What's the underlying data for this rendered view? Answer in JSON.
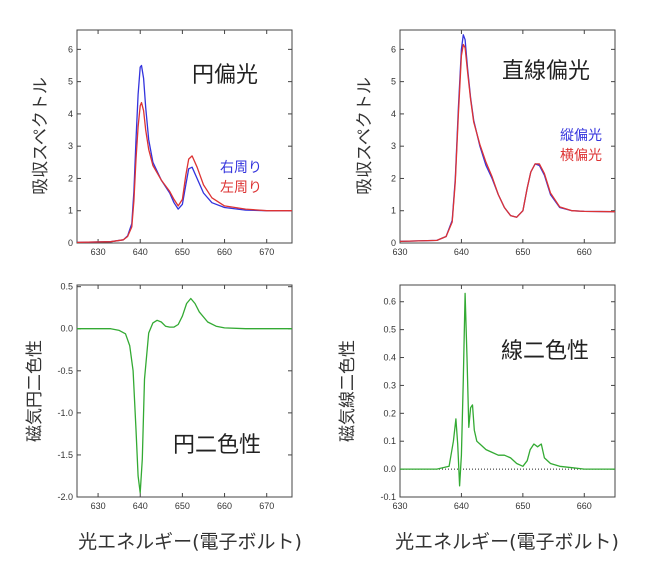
{
  "chart_data": [
    {
      "type": "line",
      "title": "",
      "ylabel": "吸収スペクトル",
      "xlabel": "",
      "xlim": [
        625,
        676
      ],
      "ylim": [
        0,
        6.6
      ],
      "xticks": [
        630,
        640,
        650,
        660,
        670
      ],
      "yticks": [
        0,
        1,
        2,
        3,
        4,
        5,
        6
      ],
      "annotation": "円偏光",
      "series": [
        {
          "name": "右周り",
          "color": "#3333dd",
          "x": [
            625,
            633,
            636,
            637,
            638,
            638.5,
            639,
            639.5,
            640,
            640.3,
            640.8,
            641.3,
            642,
            643,
            645,
            647,
            648,
            649,
            650,
            650.8,
            651.5,
            652.3,
            653.5,
            655,
            657,
            660,
            665,
            670,
            676
          ],
          "y": [
            0.02,
            0.04,
            0.1,
            0.22,
            0.6,
            1.6,
            3.2,
            4.6,
            5.45,
            5.5,
            5.1,
            4.2,
            3.2,
            2.5,
            1.95,
            1.55,
            1.25,
            1.05,
            1.2,
            1.8,
            2.3,
            2.35,
            2.0,
            1.55,
            1.25,
            1.1,
            1.02,
            1.0,
            1.0
          ]
        },
        {
          "name": "左周り",
          "color": "#dd3333",
          "x": [
            625,
            633,
            636,
            637,
            638,
            638.5,
            639,
            639.5,
            640,
            640.3,
            640.8,
            641.3,
            642,
            643,
            645,
            647,
            648,
            649,
            650,
            650.8,
            651.5,
            652.3,
            653.5,
            655,
            657,
            660,
            665,
            670,
            676
          ],
          "y": [
            0.02,
            0.04,
            0.1,
            0.2,
            0.5,
            1.3,
            2.6,
            3.6,
            4.25,
            4.35,
            4.1,
            3.5,
            2.9,
            2.4,
            1.95,
            1.6,
            1.35,
            1.15,
            1.35,
            2.1,
            2.6,
            2.7,
            2.35,
            1.8,
            1.4,
            1.15,
            1.05,
            1.0,
            1.0
          ]
        }
      ]
    },
    {
      "type": "line",
      "title": "",
      "ylabel": "吸収スペクトル",
      "xlabel": "",
      "xlim": [
        630,
        665
      ],
      "ylim": [
        0,
        6.6
      ],
      "xticks": [
        630,
        640,
        650,
        660
      ],
      "yticks": [
        0,
        1,
        2,
        3,
        4,
        5,
        6
      ],
      "annotation": "直線偏光",
      "series": [
        {
          "name": "縦偏光",
          "color": "#3333dd",
          "x": [
            630,
            636,
            637.5,
            638.5,
            639,
            639.5,
            640,
            640.3,
            640.6,
            641,
            641.5,
            642,
            643,
            644,
            645,
            646,
            647,
            648,
            649,
            650,
            650.7,
            651.3,
            652,
            652.7,
            653.5,
            654.5,
            656,
            658,
            660,
            665
          ],
          "y": [
            0.05,
            0.08,
            0.2,
            0.7,
            2.0,
            4.2,
            6.0,
            6.45,
            6.3,
            5.4,
            4.5,
            3.8,
            3.0,
            2.4,
            2.0,
            1.5,
            1.1,
            0.85,
            0.8,
            1.0,
            1.7,
            2.2,
            2.45,
            2.4,
            2.1,
            1.5,
            1.1,
            1.0,
            0.98,
            0.97
          ]
        },
        {
          "name": "横偏光",
          "color": "#dd3333",
          "x": [
            630,
            636,
            637.5,
            638.5,
            639,
            639.5,
            640,
            640.3,
            640.6,
            641,
            641.5,
            642,
            643,
            644,
            645,
            646,
            647,
            648,
            649,
            650,
            650.7,
            651.3,
            652,
            652.7,
            653.5,
            654.5,
            656,
            658,
            660,
            665
          ],
          "y": [
            0.05,
            0.08,
            0.2,
            0.65,
            1.9,
            4.0,
            5.8,
            6.15,
            6.05,
            5.3,
            4.45,
            3.75,
            3.05,
            2.5,
            2.05,
            1.5,
            1.1,
            0.85,
            0.8,
            1.0,
            1.7,
            2.2,
            2.45,
            2.45,
            2.15,
            1.55,
            1.12,
            1.0,
            0.98,
            0.97
          ]
        }
      ]
    },
    {
      "type": "line",
      "title": "",
      "ylabel": "磁気円二色性",
      "xlabel": "光エネルギー(電子ボルト)",
      "xlim": [
        625,
        676
      ],
      "ylim": [
        -2.0,
        0.52
      ],
      "xticks": [
        630,
        640,
        650,
        660,
        670
      ],
      "yticks": [
        0.5,
        0.0,
        -0.5,
        -1.0,
        -1.5,
        -2.0
      ],
      "ytick_labels": [
        "0.5",
        "0.0",
        "-0.5",
        "-1.0",
        "-1.5",
        "-2.0"
      ],
      "annotation": "円二色性",
      "series": [
        {
          "name": "",
          "color": "#33aa33",
          "x": [
            625,
            633,
            635,
            636.5,
            637.5,
            638.3,
            639,
            639.5,
            640,
            640.5,
            641,
            642,
            643,
            644,
            645,
            646,
            647,
            648,
            649,
            650,
            651,
            652,
            653,
            654,
            656,
            658,
            660,
            665,
            670,
            676
          ],
          "y": [
            0,
            0,
            -0.02,
            -0.06,
            -0.2,
            -0.5,
            -1.2,
            -1.75,
            -1.95,
            -1.55,
            -0.6,
            -0.05,
            0.07,
            0.1,
            0.08,
            0.03,
            0.02,
            0.02,
            0.05,
            0.15,
            0.3,
            0.36,
            0.3,
            0.2,
            0.08,
            0.03,
            0.01,
            0,
            0,
            0
          ]
        }
      ]
    },
    {
      "type": "line",
      "title": "",
      "ylabel": "磁気線二色性",
      "xlabel": "光エネルギー(電子ボルト)",
      "xlim": [
        630,
        665
      ],
      "ylim": [
        -0.1,
        0.66
      ],
      "xticks": [
        630,
        640,
        650,
        660
      ],
      "yticks": [
        -0.1,
        0.0,
        0.1,
        0.2,
        0.3,
        0.4,
        0.5,
        0.6
      ],
      "ytick_labels": [
        "-0.1",
        "0.0",
        "0.1",
        "0.2",
        "0.3",
        "0.4",
        "0.5",
        "0.6"
      ],
      "annotation": "線二色性",
      "zero_line": "dotted",
      "series": [
        {
          "name": "",
          "color": "#33aa33",
          "x": [
            630,
            636,
            638,
            638.7,
            639.1,
            639.4,
            639.7,
            640,
            640.3,
            640.6,
            640.9,
            641.2,
            641.5,
            641.8,
            642.1,
            642.5,
            643,
            644,
            645,
            646,
            647,
            648,
            649,
            650,
            650.7,
            651.2,
            651.8,
            652.4,
            653,
            653.5,
            654.5,
            656,
            658,
            660,
            665
          ],
          "y": [
            0,
            0,
            0.01,
            0.1,
            0.18,
            0.09,
            -0.06,
            0.05,
            0.32,
            0.63,
            0.4,
            0.15,
            0.22,
            0.23,
            0.14,
            0.1,
            0.09,
            0.07,
            0.06,
            0.05,
            0.05,
            0.04,
            0.02,
            0.01,
            0.03,
            0.07,
            0.09,
            0.08,
            0.09,
            0.04,
            0.02,
            0.01,
            0.005,
            0,
            0
          ]
        }
      ]
    }
  ]
}
